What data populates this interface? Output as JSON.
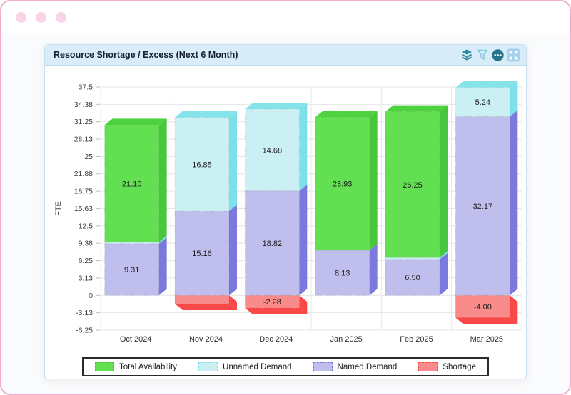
{
  "window": {
    "border_color": "#efaccb",
    "dot_color": "#f8d5e6",
    "dots": 3
  },
  "panel": {
    "title": "Resource Shortage / Excess (Next 6 Month)",
    "header_bg": "#d8ecf9",
    "toolbar_icons": [
      {
        "name": "layers-icon"
      },
      {
        "name": "filter-icon"
      },
      {
        "name": "more-icon"
      },
      {
        "name": "expand-icon"
      }
    ]
  },
  "chart_data": {
    "type": "bar",
    "stacked": true,
    "title": "Resource Shortage / Excess (Next 6 Month)",
    "xlabel": "",
    "ylabel": "FTE",
    "ylim": [
      -6.25,
      37.5
    ],
    "grid": true,
    "legend_position": "bottom",
    "tick_values": [
      37.5,
      34.38,
      31.25,
      28.13,
      25,
      21.88,
      18.75,
      15.63,
      12.5,
      9.38,
      6.25,
      3.13,
      0,
      -3.13,
      -6.25
    ],
    "tick_labels": [
      "37.5",
      "34.38",
      "31.25",
      "28.13",
      "25",
      "21.88",
      "18.75",
      "15.63",
      "12.5",
      "9.38",
      "6.25",
      "3.13",
      "0",
      "-3.13",
      "-6.25"
    ],
    "categories": [
      "Oct 2024",
      "Nov 2024",
      "Dec 2024",
      "Jan 2025",
      "Feb 2025",
      "Mar 2025"
    ],
    "stack_order_bottom_to_top": [
      "Named Demand",
      "Unnamed Demand",
      "Total Availability"
    ],
    "series": [
      {
        "name": "Total Availability",
        "color": "#63e052",
        "side_color": "#47c63e",
        "top_color": "#4fd23f",
        "values": [
          21.1,
          0,
          0,
          23.93,
          26.25,
          0
        ],
        "labels": [
          "21.10",
          "",
          "",
          "23.93",
          "26.25",
          ""
        ]
      },
      {
        "name": "Unnamed Demand",
        "color": "#cbf0f4",
        "side_color": "#7ee0e8",
        "top_color": "#85e3ea",
        "values": [
          0.25,
          16.85,
          14.68,
          0,
          0.3,
          5.24
        ],
        "labels": [
          "",
          "16.85",
          "14.68",
          "",
          "",
          "5.24"
        ]
      },
      {
        "name": "Named Demand",
        "color": "#bfbeec",
        "side_color": "#7b79dc",
        "top_color": "#a9a8e6",
        "values": [
          9.31,
          15.16,
          18.82,
          8.13,
          6.5,
          32.17
        ],
        "labels": [
          "9.31",
          "15.16",
          "18.82",
          "8.13",
          "6.50",
          "32.17"
        ]
      },
      {
        "name": "Shortage",
        "color": "#f98b8b",
        "side_color": "#fa4848",
        "top_color": "#fa4848",
        "values": [
          0,
          -1.5,
          -2.28,
          0,
          0,
          -4.0
        ],
        "labels": [
          "",
          "",
          "-2.28",
          "",
          "",
          "-4.00"
        ]
      }
    ],
    "legend": [
      "Total Availability",
      "Unnamed Demand",
      "Named Demand",
      "Shortage"
    ]
  }
}
